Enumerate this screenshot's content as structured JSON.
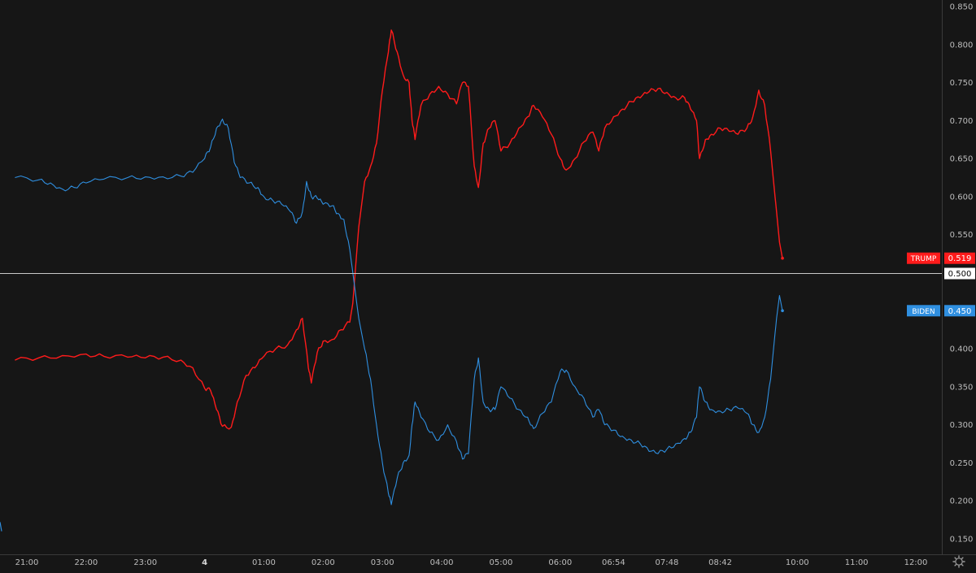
{
  "colors": {
    "background": "#161616",
    "trump": "#ff1b1b",
    "biden": "#2f8fe0",
    "axis_text": "#bdbdbd",
    "axis_line": "#3a3a3a",
    "midline": "#c8c8c8"
  },
  "icons": {
    "settings": "gear-icon"
  },
  "chart_data": {
    "type": "line",
    "title": "",
    "xlabel": "",
    "ylabel": "",
    "ylim": [
      0.13,
      0.855
    ],
    "grid": false,
    "x_hours_range": [
      20.8,
      36.6
    ],
    "x_unit": "hour, with 24 = 00:00 on day 4",
    "y_ticks": [
      "0.850",
      "0.800",
      "0.750",
      "0.700",
      "0.650",
      "0.600",
      "0.550",
      "0.500",
      "0.450",
      "0.400",
      "0.350",
      "0.300",
      "0.250",
      "0.200",
      "0.150"
    ],
    "x_ticks": [
      {
        "label": "21:00",
        "hour": 21,
        "bold": false
      },
      {
        "label": "22:00",
        "hour": 22,
        "bold": false
      },
      {
        "label": "23:00",
        "hour": 23,
        "bold": false
      },
      {
        "label": "4",
        "hour": 24,
        "bold": true
      },
      {
        "label": "01:00",
        "hour": 25,
        "bold": false
      },
      {
        "label": "02:00",
        "hour": 26,
        "bold": false
      },
      {
        "label": "03:00",
        "hour": 27,
        "bold": false
      },
      {
        "label": "04:00",
        "hour": 28,
        "bold": false
      },
      {
        "label": "05:00",
        "hour": 29,
        "bold": false
      },
      {
        "label": "06:00",
        "hour": 30,
        "bold": false
      },
      {
        "label": "06:54",
        "hour": 30.9,
        "bold": false
      },
      {
        "label": "07:48",
        "hour": 31.8,
        "bold": false
      },
      {
        "label": "08:42",
        "hour": 32.7,
        "bold": false
      },
      {
        "label": "10:00",
        "hour": 34,
        "bold": false
      },
      {
        "label": "11:00",
        "hour": 35,
        "bold": false
      },
      {
        "label": "12:00",
        "hour": 36,
        "bold": false
      }
    ],
    "reference_line": {
      "value": 0.5,
      "label": "0.500"
    },
    "series": [
      {
        "name": "TRUMP",
        "last_value": "0.519",
        "points": [
          [
            20.8,
            0.385
          ],
          [
            21.2,
            0.388
          ],
          [
            21.6,
            0.391
          ],
          [
            22.0,
            0.393
          ],
          [
            22.3,
            0.39
          ],
          [
            22.7,
            0.389
          ],
          [
            23.0,
            0.388
          ],
          [
            23.3,
            0.389
          ],
          [
            23.6,
            0.385
          ],
          [
            23.8,
            0.375
          ],
          [
            24.0,
            0.348
          ],
          [
            24.1,
            0.345
          ],
          [
            24.2,
            0.32
          ],
          [
            24.3,
            0.298
          ],
          [
            24.45,
            0.297
          ],
          [
            24.55,
            0.33
          ],
          [
            24.7,
            0.365
          ],
          [
            24.85,
            0.375
          ],
          [
            25.0,
            0.39
          ],
          [
            25.2,
            0.4
          ],
          [
            25.4,
            0.405
          ],
          [
            25.55,
            0.425
          ],
          [
            25.65,
            0.44
          ],
          [
            25.75,
            0.375
          ],
          [
            25.8,
            0.355
          ],
          [
            25.9,
            0.395
          ],
          [
            26.0,
            0.41
          ],
          [
            26.15,
            0.412
          ],
          [
            26.3,
            0.425
          ],
          [
            26.45,
            0.435
          ],
          [
            26.5,
            0.46
          ],
          [
            26.6,
            0.56
          ],
          [
            26.7,
            0.62
          ],
          [
            26.8,
            0.64
          ],
          [
            26.9,
            0.67
          ],
          [
            27.0,
            0.74
          ],
          [
            27.1,
            0.79
          ],
          [
            27.15,
            0.819
          ],
          [
            27.25,
            0.79
          ],
          [
            27.35,
            0.76
          ],
          [
            27.45,
            0.75
          ],
          [
            27.5,
            0.7
          ],
          [
            27.55,
            0.675
          ],
          [
            27.65,
            0.72
          ],
          [
            27.8,
            0.735
          ],
          [
            27.95,
            0.745
          ],
          [
            28.1,
            0.735
          ],
          [
            28.25,
            0.722
          ],
          [
            28.35,
            0.75
          ],
          [
            28.45,
            0.745
          ],
          [
            28.55,
            0.64
          ],
          [
            28.62,
            0.612
          ],
          [
            28.7,
            0.67
          ],
          [
            28.8,
            0.69
          ],
          [
            28.9,
            0.7
          ],
          [
            29.0,
            0.66
          ],
          [
            29.15,
            0.67
          ],
          [
            29.3,
            0.69
          ],
          [
            29.45,
            0.705
          ],
          [
            29.55,
            0.72
          ],
          [
            29.7,
            0.705
          ],
          [
            29.85,
            0.682
          ],
          [
            30.0,
            0.65
          ],
          [
            30.1,
            0.635
          ],
          [
            30.25,
            0.65
          ],
          [
            30.4,
            0.672
          ],
          [
            30.55,
            0.685
          ],
          [
            30.65,
            0.66
          ],
          [
            30.75,
            0.69
          ],
          [
            30.9,
            0.705
          ],
          [
            31.05,
            0.715
          ],
          [
            31.2,
            0.725
          ],
          [
            31.35,
            0.73
          ],
          [
            31.5,
            0.738
          ],
          [
            31.65,
            0.742
          ],
          [
            31.8,
            0.737
          ],
          [
            31.95,
            0.73
          ],
          [
            32.1,
            0.73
          ],
          [
            32.2,
            0.715
          ],
          [
            32.3,
            0.7
          ],
          [
            32.35,
            0.65
          ],
          [
            32.45,
            0.675
          ],
          [
            32.55,
            0.682
          ],
          [
            32.7,
            0.69
          ],
          [
            32.85,
            0.686
          ],
          [
            33.0,
            0.682
          ],
          [
            33.15,
            0.69
          ],
          [
            33.25,
            0.705
          ],
          [
            33.35,
            0.74
          ],
          [
            33.45,
            0.72
          ],
          [
            33.55,
            0.66
          ],
          [
            33.6,
            0.62
          ],
          [
            33.65,
            0.58
          ],
          [
            33.7,
            0.54
          ],
          [
            33.75,
            0.519
          ]
        ]
      },
      {
        "name": "BIDEN",
        "last_value": "0.450",
        "points": [
          [
            20.8,
            0.625
          ],
          [
            21.2,
            0.622
          ],
          [
            21.4,
            0.618
          ],
          [
            21.6,
            0.61
          ],
          [
            21.8,
            0.612
          ],
          [
            22.0,
            0.618
          ],
          [
            22.3,
            0.623
          ],
          [
            22.7,
            0.625
          ],
          [
            23.0,
            0.626
          ],
          [
            23.3,
            0.626
          ],
          [
            23.6,
            0.627
          ],
          [
            23.8,
            0.632
          ],
          [
            24.0,
            0.65
          ],
          [
            24.1,
            0.665
          ],
          [
            24.2,
            0.69
          ],
          [
            24.3,
            0.702
          ],
          [
            24.4,
            0.69
          ],
          [
            24.5,
            0.645
          ],
          [
            24.6,
            0.625
          ],
          [
            24.75,
            0.618
          ],
          [
            24.9,
            0.612
          ],
          [
            25.0,
            0.6
          ],
          [
            25.15,
            0.595
          ],
          [
            25.3,
            0.59
          ],
          [
            25.45,
            0.58
          ],
          [
            25.55,
            0.565
          ],
          [
            25.65,
            0.58
          ],
          [
            25.72,
            0.62
          ],
          [
            25.8,
            0.6
          ],
          [
            25.9,
            0.598
          ],
          [
            26.0,
            0.59
          ],
          [
            26.15,
            0.588
          ],
          [
            26.25,
            0.578
          ],
          [
            26.35,
            0.57
          ],
          [
            26.45,
            0.53
          ],
          [
            26.5,
            0.5
          ],
          [
            26.6,
            0.44
          ],
          [
            26.7,
            0.4
          ],
          [
            26.8,
            0.36
          ],
          [
            26.9,
            0.3
          ],
          [
            27.0,
            0.25
          ],
          [
            27.1,
            0.21
          ],
          [
            27.15,
            0.195
          ],
          [
            27.25,
            0.23
          ],
          [
            27.35,
            0.25
          ],
          [
            27.45,
            0.26
          ],
          [
            27.5,
            0.3
          ],
          [
            27.55,
            0.33
          ],
          [
            27.65,
            0.31
          ],
          [
            27.8,
            0.29
          ],
          [
            27.95,
            0.28
          ],
          [
            28.1,
            0.3
          ],
          [
            28.25,
            0.278
          ],
          [
            28.35,
            0.255
          ],
          [
            28.45,
            0.262
          ],
          [
            28.55,
            0.36
          ],
          [
            28.62,
            0.388
          ],
          [
            28.7,
            0.33
          ],
          [
            28.8,
            0.32
          ],
          [
            28.9,
            0.32
          ],
          [
            29.0,
            0.35
          ],
          [
            29.15,
            0.335
          ],
          [
            29.3,
            0.32
          ],
          [
            29.45,
            0.31
          ],
          [
            29.55,
            0.295
          ],
          [
            29.7,
            0.315
          ],
          [
            29.85,
            0.33
          ],
          [
            30.0,
            0.37
          ],
          [
            30.1,
            0.372
          ],
          [
            30.25,
            0.35
          ],
          [
            30.4,
            0.335
          ],
          [
            30.55,
            0.31
          ],
          [
            30.65,
            0.32
          ],
          [
            30.75,
            0.3
          ],
          [
            30.9,
            0.293
          ],
          [
            31.05,
            0.285
          ],
          [
            31.2,
            0.28
          ],
          [
            31.35,
            0.275
          ],
          [
            31.5,
            0.265
          ],
          [
            31.65,
            0.262
          ],
          [
            31.8,
            0.268
          ],
          [
            31.95,
            0.275
          ],
          [
            32.1,
            0.282
          ],
          [
            32.2,
            0.29
          ],
          [
            32.3,
            0.31
          ],
          [
            32.35,
            0.35
          ],
          [
            32.45,
            0.33
          ],
          [
            32.55,
            0.32
          ],
          [
            32.7,
            0.318
          ],
          [
            32.85,
            0.32
          ],
          [
            33.0,
            0.322
          ],
          [
            33.15,
            0.315
          ],
          [
            33.25,
            0.3
          ],
          [
            33.35,
            0.29
          ],
          [
            33.45,
            0.31
          ],
          [
            33.55,
            0.36
          ],
          [
            33.6,
            0.4
          ],
          [
            33.65,
            0.44
          ],
          [
            33.7,
            0.47
          ],
          [
            33.75,
            0.45
          ]
        ]
      }
    ]
  }
}
